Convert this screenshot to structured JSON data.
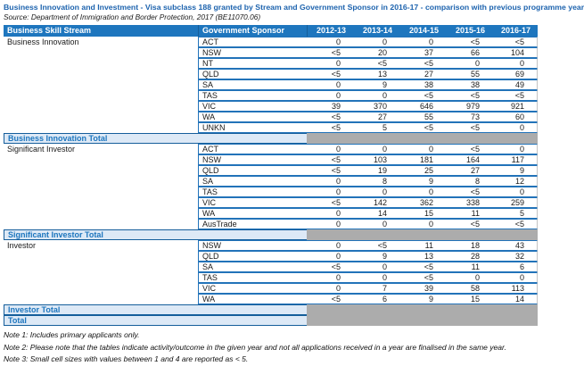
{
  "colors": {
    "accent_blue": "#1E76BE",
    "title_blue": "#1D63AE",
    "row_border_blue": "#2273B9",
    "total_border_blue": "#155E9B",
    "total_bg": "#DDE9F6",
    "gray_cell": "#ACACAC",
    "header_text": "#FFFFFF",
    "body_text": "#1A1A1A"
  },
  "header": {
    "title": "Business Innovation and Investment - Visa subclass 188 granted by Stream and Government Sponsor in 2016-17 - comparison with previous programme year",
    "source": "Source: Department of Immigration and Border Protection, 2017 (BE11070.06)"
  },
  "table": {
    "columns": [
      "Business Skill Stream",
      "Government Sponsor",
      "2012-13",
      "2013-14",
      "2014-15",
      "2015-16",
      "2016-17"
    ],
    "groups": [
      {
        "stream": "Business Innovation",
        "total_label": "Business Innovation Total",
        "rows": [
          {
            "sponsor": "ACT",
            "values": [
              "0",
              "0",
              "0",
              "<5",
              "<5"
            ]
          },
          {
            "sponsor": "NSW",
            "values": [
              "<5",
              "20",
              "37",
              "66",
              "104"
            ]
          },
          {
            "sponsor": "NT",
            "values": [
              "0",
              "<5",
              "<5",
              "0",
              "0"
            ]
          },
          {
            "sponsor": "QLD",
            "values": [
              "<5",
              "13",
              "27",
              "55",
              "69"
            ]
          },
          {
            "sponsor": "SA",
            "values": [
              "0",
              "9",
              "38",
              "38",
              "49"
            ]
          },
          {
            "sponsor": "TAS",
            "values": [
              "0",
              "0",
              "<5",
              "<5",
              "<5"
            ]
          },
          {
            "sponsor": "VIC",
            "values": [
              "39",
              "370",
              "646",
              "979",
              "921"
            ]
          },
          {
            "sponsor": "WA",
            "values": [
              "<5",
              "27",
              "55",
              "73",
              "60"
            ]
          },
          {
            "sponsor": "UNKN",
            "values": [
              "<5",
              "5",
              "<5",
              "<5",
              "0"
            ]
          }
        ]
      },
      {
        "stream": "Significant Investor",
        "total_label": "Significant Investor Total",
        "rows": [
          {
            "sponsor": "ACT",
            "values": [
              "0",
              "0",
              "0",
              "<5",
              "0"
            ]
          },
          {
            "sponsor": "NSW",
            "values": [
              "<5",
              "103",
              "181",
              "164",
              "117"
            ]
          },
          {
            "sponsor": "QLD",
            "values": [
              "<5",
              "19",
              "25",
              "27",
              "9"
            ]
          },
          {
            "sponsor": "SA",
            "values": [
              "0",
              "8",
              "9",
              "8",
              "12"
            ]
          },
          {
            "sponsor": "TAS",
            "values": [
              "0",
              "0",
              "0",
              "<5",
              "0"
            ]
          },
          {
            "sponsor": "VIC",
            "values": [
              "<5",
              "142",
              "362",
              "338",
              "259"
            ]
          },
          {
            "sponsor": "WA",
            "values": [
              "0",
              "14",
              "15",
              "11",
              "5"
            ]
          },
          {
            "sponsor": "AusTrade",
            "values": [
              "0",
              "0",
              "0",
              "<5",
              "<5"
            ]
          }
        ]
      },
      {
        "stream": "Investor",
        "total_label": "Investor Total",
        "rows": [
          {
            "sponsor": "NSW",
            "values": [
              "0",
              "<5",
              "11",
              "18",
              "43"
            ]
          },
          {
            "sponsor": "QLD",
            "values": [
              "0",
              "9",
              "13",
              "28",
              "32"
            ]
          },
          {
            "sponsor": "SA",
            "values": [
              "<5",
              "0",
              "<5",
              "11",
              "6"
            ]
          },
          {
            "sponsor": "TAS",
            "values": [
              "0",
              "0",
              "<5",
              "0",
              "0"
            ]
          },
          {
            "sponsor": "VIC",
            "values": [
              "0",
              "7",
              "39",
              "58",
              "113"
            ]
          },
          {
            "sponsor": "WA",
            "values": [
              "<5",
              "6",
              "9",
              "15",
              "14"
            ]
          }
        ]
      }
    ],
    "grand_total_label": "Total"
  },
  "notes": [
    "Note 1: Includes primary applicants only.",
    "Note 2: Please note that the tables indicate activity/outcome in the given year and not all applications received in a year are finalised in the same year.",
    "Note 3: Small cell sizes with values between 1 and 4 are reported as < 5."
  ]
}
